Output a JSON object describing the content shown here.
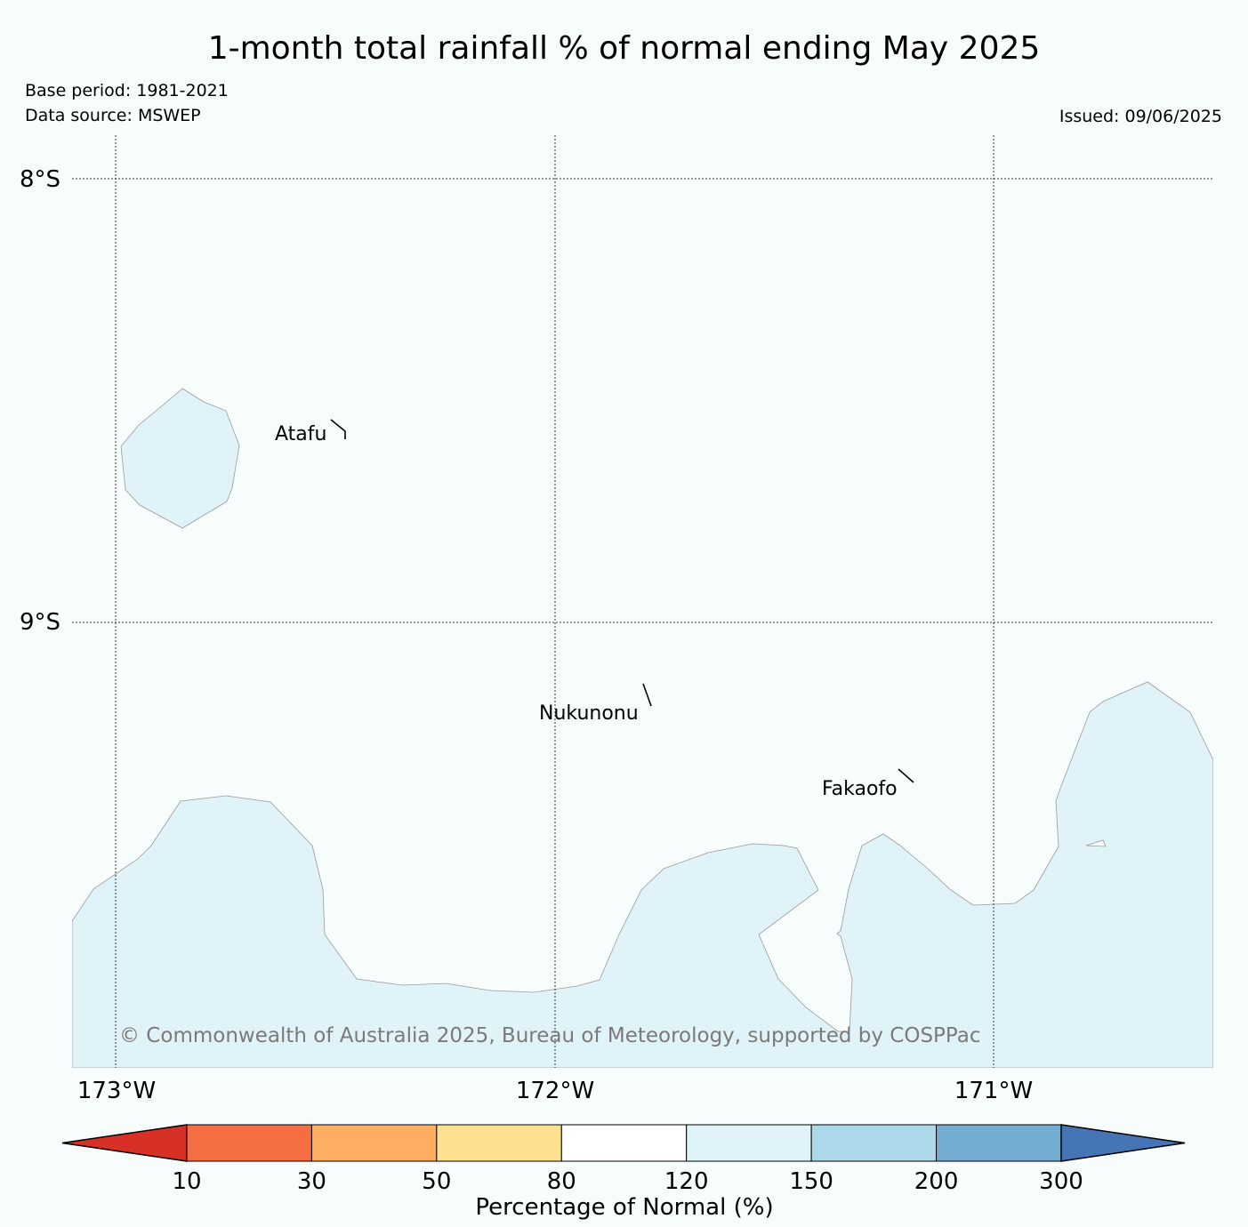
{
  "title": "1-month total rainfall % of normal ending May 2025",
  "base_period": "Base period: 1981-2021",
  "data_source": "Data source: MSWEP",
  "issued": "Issued: 09/06/2025",
  "copyright": "© Commonwealth of Australia 2025, Bureau of Meteorology, supported by COSPPac",
  "map": {
    "lat_labels": [
      "8°S",
      "9°S"
    ],
    "lon_labels": [
      "173°W",
      "172°W",
      "171°W"
    ],
    "places": [
      "Atafu",
      "Nukunonu",
      "Fakaofo"
    ],
    "fill_colors": {
      "ocean": "#f7fcfd",
      "shaded_region": "#e0f3f8",
      "outline": "#9a9a9a"
    },
    "shaded_category": "120-150"
  },
  "colorbar": {
    "title": "Percentage of Normal (%)",
    "ticks": [
      "10",
      "30",
      "50",
      "80",
      "120",
      "150",
      "200",
      "300"
    ],
    "colors": [
      "#d73027",
      "#f46d43",
      "#fdae61",
      "#fee090",
      "#ffffff",
      "#e0f3f8",
      "#abd9e9",
      "#74add1",
      "#4575b4"
    ]
  }
}
